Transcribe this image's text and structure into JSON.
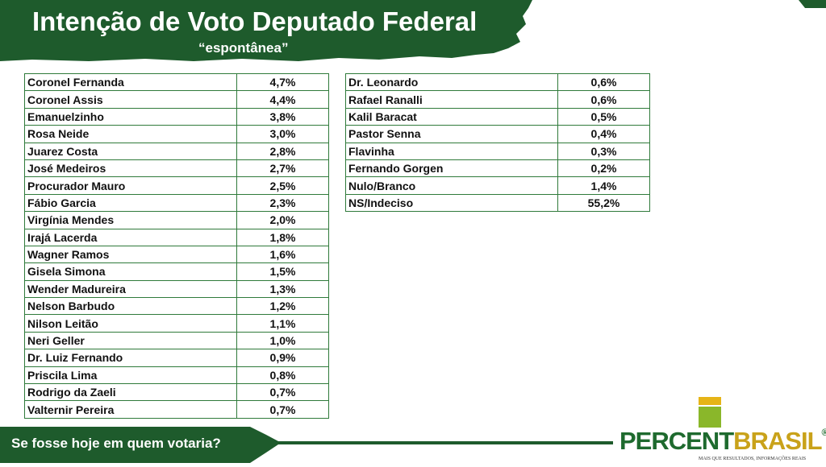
{
  "header": {
    "title": "Intenção de Voto Deputado Federal",
    "subtitle": "“espontânea”"
  },
  "tables": [
    {
      "rows": [
        [
          "Coronel Fernanda",
          "4,7%"
        ],
        [
          "Coronel Assis",
          "4,4%"
        ],
        [
          "Emanuelzinho",
          "3,8%"
        ],
        [
          "Rosa Neide",
          "3,0%"
        ],
        [
          "Juarez Costa",
          "2,8%"
        ],
        [
          "José Medeiros",
          "2,7%"
        ],
        [
          "Procurador Mauro",
          "2,5%"
        ],
        [
          "Fábio Garcia",
          "2,3%"
        ],
        [
          "Virgínia Mendes",
          "2,0%"
        ],
        [
          "Irajá Lacerda",
          "1,8%"
        ],
        [
          "Wagner Ramos",
          "1,6%"
        ],
        [
          "Gisela Simona",
          "1,5%"
        ],
        [
          "Wender Madureira",
          "1,3%"
        ],
        [
          "Nelson Barbudo",
          "1,2%"
        ],
        [
          "Nilson Leitão",
          "1,1%"
        ],
        [
          "Neri Geller",
          "1,0%"
        ],
        [
          "Dr. Luiz Fernando",
          "0,9%"
        ],
        [
          "Priscila Lima",
          "0,8%"
        ],
        [
          "Rodrigo da Zaeli",
          "0,7%"
        ],
        [
          "Valternir Pereira",
          "0,7%"
        ]
      ]
    },
    {
      "rows": [
        [
          "Dr. Leonardo",
          "0,6%"
        ],
        [
          "Rafael Ranalli",
          "0,6%"
        ],
        [
          "Kalil Baracat",
          "0,5%"
        ],
        [
          "Pastor Senna",
          "0,4%"
        ],
        [
          "Flavinha",
          "0,3%"
        ],
        [
          "Fernando Gorgen",
          "0,2%"
        ],
        [
          "Nulo/Branco",
          "1,4%"
        ],
        [
          "NS/Indeciso",
          "55,2%"
        ]
      ]
    }
  ],
  "footer": {
    "question": "Se fosse hoje em quem votaria?"
  },
  "logo": {
    "part1": "PERCENT",
    "part2": "BRASIL",
    "mark": "®",
    "tagline": "MAIS QUE RESULTADOS, INFORMAÇÕES REAIS"
  }
}
